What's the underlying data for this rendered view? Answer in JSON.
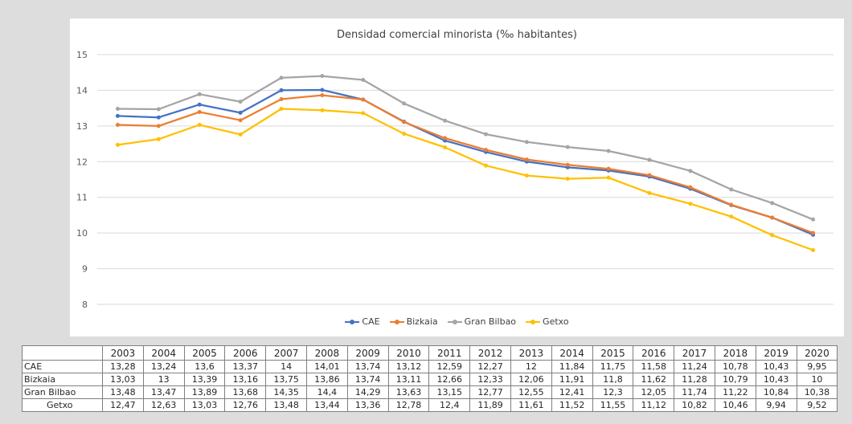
{
  "chart_data": {
    "type": "line",
    "title": "Densidad comercial minorista (‰ habitantes)",
    "xlabel": "",
    "ylabel": "",
    "ylim": [
      8,
      15
    ],
    "yticks": [
      "8",
      "9",
      "10",
      "11",
      "12",
      "13",
      "14",
      "15"
    ],
    "grid": "horizontal",
    "legend_position": "bottom",
    "categories": [
      "2003",
      "2004",
      "2005",
      "2006",
      "2007",
      "2008",
      "2009",
      "2010",
      "2011",
      "2012",
      "2013",
      "2014",
      "2015",
      "2016",
      "2017",
      "2018",
      "2019",
      "2020"
    ],
    "series": [
      {
        "name": "CAE",
        "color": "#4472c4",
        "values": [
          13.28,
          13.24,
          13.6,
          13.37,
          14,
          14.01,
          13.74,
          13.12,
          12.59,
          12.27,
          12,
          11.84,
          11.75,
          11.58,
          11.24,
          10.78,
          10.43,
          9.95
        ],
        "labels": [
          "13,28",
          "13,24",
          "13,6",
          "13,37",
          "14",
          "14,01",
          "13,74",
          "13,12",
          "12,59",
          "12,27",
          "12",
          "11,84",
          "11,75",
          "11,58",
          "11,24",
          "10,78",
          "10,43",
          "9,95"
        ]
      },
      {
        "name": "Bizkaia",
        "color": "#ed7d31",
        "values": [
          13.03,
          13,
          13.39,
          13.16,
          13.75,
          13.86,
          13.74,
          13.11,
          12.66,
          12.33,
          12.06,
          11.91,
          11.8,
          11.62,
          11.28,
          10.79,
          10.43,
          10
        ],
        "labels": [
          "13,03",
          "13",
          "13,39",
          "13,16",
          "13,75",
          "13,86",
          "13,74",
          "13,11",
          "12,66",
          "12,33",
          "12,06",
          "11,91",
          "11,8",
          "11,62",
          "11,28",
          "10,79",
          "10,43",
          "10"
        ]
      },
      {
        "name": "Gran Bilbao",
        "color": "#a5a5a5",
        "values": [
          13.48,
          13.47,
          13.89,
          13.68,
          14.35,
          14.4,
          14.29,
          13.63,
          13.15,
          12.77,
          12.55,
          12.41,
          12.3,
          12.05,
          11.74,
          11.22,
          10.84,
          10.38
        ],
        "labels": [
          "13,48",
          "13,47",
          "13,89",
          "13,68",
          "14,35",
          "14,4",
          "14,29",
          "13,63",
          "13,15",
          "12,77",
          "12,55",
          "12,41",
          "12,3",
          "12,05",
          "11,74",
          "11,22",
          "10,84",
          "10,38"
        ]
      },
      {
        "name": "Getxo",
        "color": "#ffc000",
        "values": [
          12.47,
          12.63,
          13.03,
          12.76,
          13.48,
          13.44,
          13.36,
          12.78,
          12.4,
          11.89,
          11.61,
          11.52,
          11.55,
          11.12,
          10.82,
          10.46,
          9.94,
          9.52
        ],
        "labels": [
          "12,47",
          "12,63",
          "13,03",
          "12,76",
          "13,48",
          "13,44",
          "13,36",
          "12,78",
          "12,4",
          "11,89",
          "11,61",
          "11,52",
          "11,55",
          "11,12",
          "10,82",
          "10,46",
          "9,94",
          "9,52"
        ]
      }
    ]
  }
}
